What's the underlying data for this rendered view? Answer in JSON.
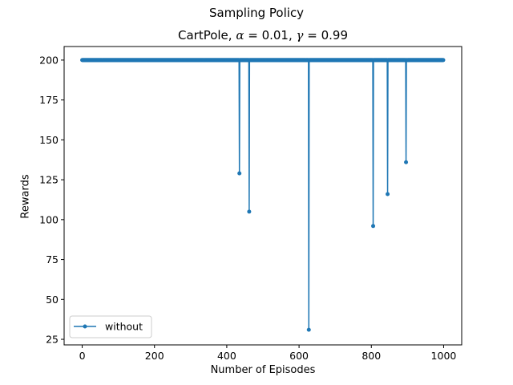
{
  "chart_data": {
    "type": "line",
    "suptitle": "Sampling Policy",
    "title": {
      "prefix": "CartPole, ",
      "alpha_symbol": "α",
      "alpha_text": " = 0.01, ",
      "gamma_symbol": "γ",
      "gamma_text": " = 0.99"
    },
    "xlabel": "Number of Episodes",
    "ylabel": "Rewards",
    "xlim": [
      -50,
      1050
    ],
    "ylim": [
      21.5,
      208.5
    ],
    "xticks": [
      0,
      200,
      400,
      600,
      800,
      1000
    ],
    "yticks": [
      25,
      50,
      75,
      100,
      125,
      150,
      175,
      200
    ],
    "legend_position": "lower-left",
    "series": [
      {
        "name": "without",
        "color": "#1f77b4",
        "marker": "dot",
        "episode_count": 1000,
        "baseline_value": 200,
        "dips": [
          {
            "x": 435,
            "y": 129
          },
          {
            "x": 462,
            "y": 105
          },
          {
            "x": 627,
            "y": 31
          },
          {
            "x": 805,
            "y": 96
          },
          {
            "x": 845,
            "y": 116
          },
          {
            "x": 896,
            "y": 136
          }
        ]
      }
    ]
  }
}
